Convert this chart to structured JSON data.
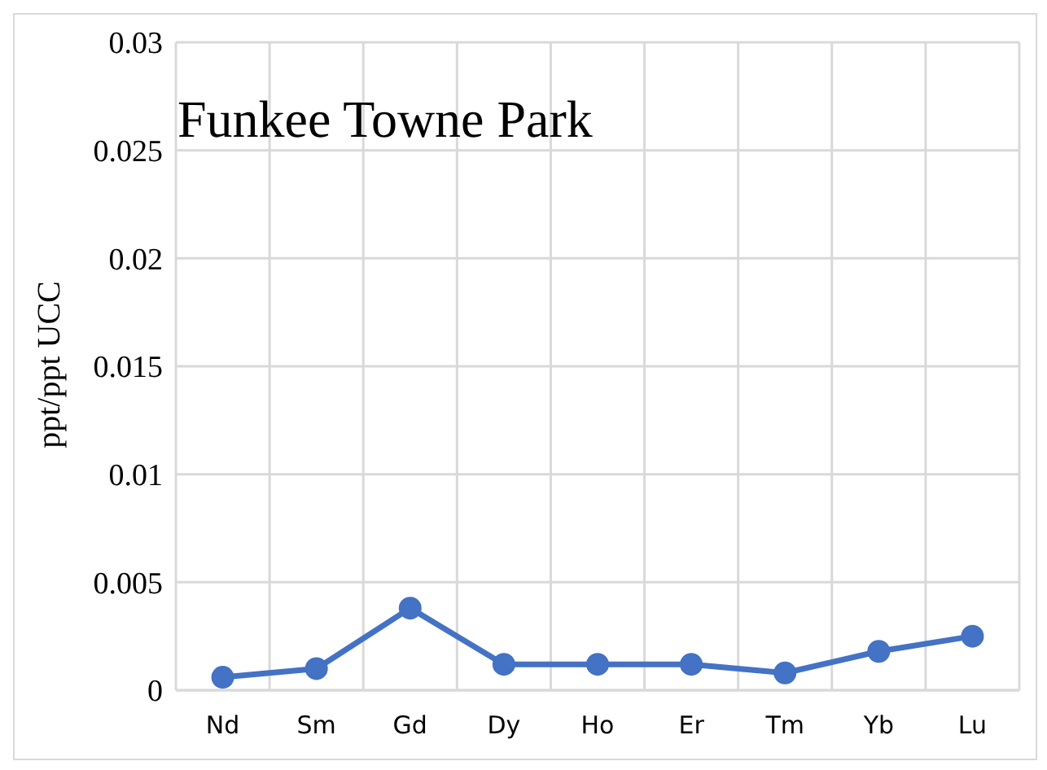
{
  "chart_data": {
    "type": "line",
    "title": "Funkee Towne Park",
    "ylabel": "ppt/ppt UCC",
    "categories": [
      "Nd",
      "Sm",
      "Gd",
      "Dy",
      "Ho",
      "Er",
      "Tm",
      "Yb",
      "Lu"
    ],
    "series": [
      {
        "color": "#4472c4",
        "values": [
          0.0006,
          0.001,
          0.0038,
          0.0012,
          0.0012,
          0.0012,
          0.0008,
          0.0018,
          0.0025
        ]
      }
    ],
    "ylim": [
      0,
      0.03
    ],
    "yticks": [
      0,
      0.005,
      0.01,
      0.015,
      0.02,
      0.025,
      0.03
    ],
    "grid": true,
    "marker": "circle",
    "line_style": "solid"
  }
}
